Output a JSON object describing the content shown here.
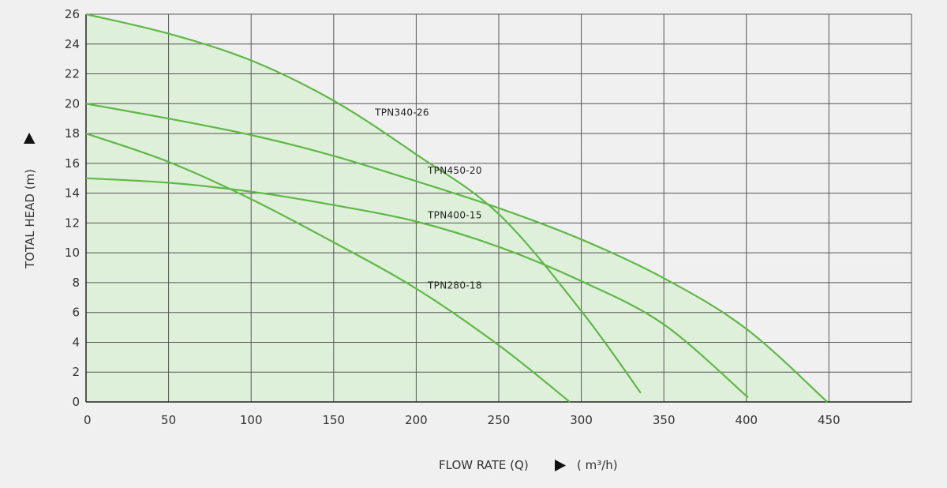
{
  "chart_data": {
    "type": "line",
    "title": "",
    "xlabel": "FLOW RATE (Q)",
    "xunit": "( m³/h)",
    "ylabel": "TOTAL HEAD (m)",
    "xlim": [
      0,
      500
    ],
    "ylim": [
      0,
      26
    ],
    "xticks": [
      0,
      50,
      100,
      150,
      200,
      250,
      300,
      350,
      400,
      450
    ],
    "yticks": [
      0,
      2,
      4,
      6,
      8,
      10,
      12,
      14,
      16,
      18,
      20,
      22,
      24,
      26
    ],
    "grid": true,
    "series": [
      {
        "name": "TPN340-26",
        "label_at": [
          175,
          19.2
        ],
        "x": [
          0,
          50,
          100,
          150,
          200,
          250,
          300,
          336
        ],
        "y": [
          26,
          24.7,
          22.9,
          20.2,
          16.6,
          12.6,
          6.1,
          0.6
        ]
      },
      {
        "name": "TPN450-20",
        "label_at": [
          207,
          15.3
        ],
        "x": [
          0,
          50,
          100,
          150,
          200,
          250,
          300,
          350,
          400,
          449
        ],
        "y": [
          20,
          19,
          17.9,
          16.5,
          14.8,
          13,
          10.9,
          8.3,
          4.9,
          0
        ]
      },
      {
        "name": "TPN400-15",
        "label_at": [
          207,
          12.3
        ],
        "x": [
          0,
          50,
          100,
          150,
          200,
          250,
          300,
          350,
          401
        ],
        "y": [
          15,
          14.7,
          14.1,
          13.2,
          12.1,
          10.4,
          8.1,
          5.2,
          0.3
        ]
      },
      {
        "name": "TPN280-18",
        "label_at": [
          207,
          7.6
        ],
        "x": [
          0,
          50,
          100,
          150,
          200,
          250,
          293
        ],
        "y": [
          18,
          16.1,
          13.6,
          10.7,
          7.6,
          3.8,
          0
        ]
      }
    ],
    "colors": {
      "background": "#f0f0f0",
      "plot_fill": "#dff0da",
      "grid": "#555555",
      "curve": "#5db845"
    }
  }
}
